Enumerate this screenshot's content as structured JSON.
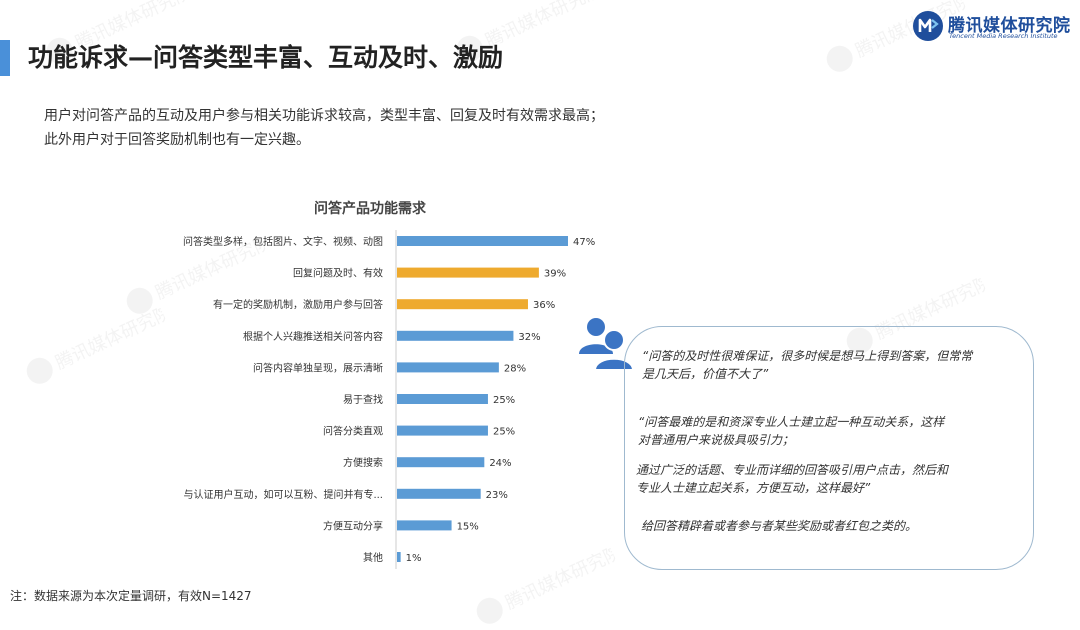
{
  "header": {
    "title": "功能诉求—问答类型丰富、互动及时、激励",
    "logo_cn": "腾讯媒体研究院",
    "logo_en": "Tencent Media Research Institute"
  },
  "summary": {
    "line1": "用户对问答产品的互动及用户参与相关功能诉求较高，类型丰富、回复及时有效需求最高；",
    "line2": "此外用户对于回答奖励机制也有一定兴趣。"
  },
  "watermark_text": "腾讯媒体研究院",
  "chart_title": "问答产品功能需求",
  "chart_data": {
    "type": "bar",
    "orientation": "horizontal",
    "title": "问答产品功能需求",
    "categories": [
      "问答类型多样，包括图片、文字、视频、动图",
      "回复问题及时、有效",
      "有一定的奖励机制，激励用户参与回答",
      "根据个人兴趣推送相关问答内容",
      "问答内容单独呈现，展示清晰",
      "易于查找",
      "问答分类直观",
      "方便搜索",
      "与认证用户互动，如可以互粉、提问并有专...",
      "方便互动分享",
      "其他"
    ],
    "values": [
      47,
      39,
      36,
      32,
      28,
      25,
      25,
      24,
      23,
      15,
      1
    ],
    "value_labels": [
      "47%",
      "39%",
      "36%",
      "32%",
      "28%",
      "25%",
      "25%",
      "24%",
      "23%",
      "15%",
      "1%"
    ],
    "colors": [
      "#5b9bd5",
      "#eeaa2e",
      "#eeaa2e",
      "#5b9bd5",
      "#5b9bd5",
      "#5b9bd5",
      "#5b9bd5",
      "#5b9bd5",
      "#5b9bd5",
      "#5b9bd5",
      "#5b9bd5"
    ],
    "xlim": [
      0,
      47
    ],
    "grid": false,
    "legend": "none"
  },
  "quotes": {
    "q1": "“问答的及时性很难保证，很多时候是想马上得到答案，但常常\n是几天后，价值不大了”",
    "q2": "“问答最难的是和资深专业人士建立起一种互动关系，这样\n对普通用户来说极具吸引力；",
    "q3": "通过广泛的话题、专业而详细的回答吸引用户点击，然后和\n专业人士建立起关系，方便互动，这样最好”",
    "q4": "给回答精辟着或者参与者某些奖励或者红包之类的。"
  },
  "footnote": "注：数据来源为本次定量调研，有效N=1427",
  "colors": {
    "accent": "#4a90d9",
    "bar_default": "#5b9bd5",
    "bar_highlight": "#eeaa2e",
    "quote_border": "#9fb9cf",
    "icon": "#3b74c4"
  },
  "icons": {
    "logo": "media-research-logo-icon",
    "users": "users-icon"
  }
}
